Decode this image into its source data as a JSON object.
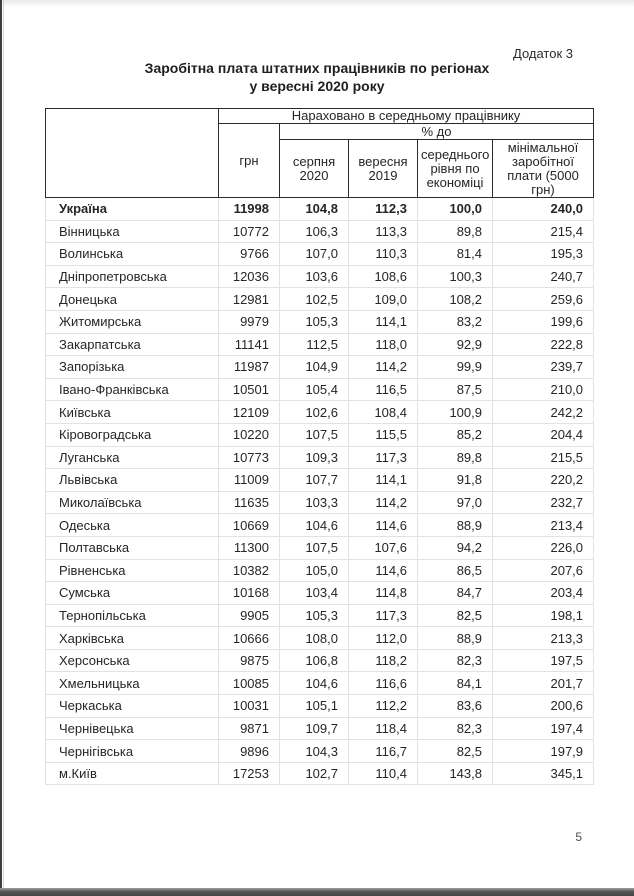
{
  "page": {
    "appendix_label": "Додаток 3",
    "title_line1": "Заробітна плата штатних працівників по регіонах",
    "title_line2": "у вересні 2020 року",
    "page_number": "5"
  },
  "table": {
    "header": {
      "group_label": "Нараховано в середньому працівнику",
      "uah_label": "грн",
      "percent_label": "% до",
      "sub_columns": [
        "серпня 2020",
        "вересня 2019",
        "середнього рівня по економіці",
        "мінімальної заробітної плати (5000 грн)"
      ]
    },
    "rows": [
      {
        "region": "Україна",
        "uah": "11998",
        "to_aug_2020": "104,8",
        "to_sep_2019": "112,3",
        "to_avg_economy": "100,0",
        "to_min_wage": "240,0",
        "bold": true
      },
      {
        "region": "Вінницька",
        "uah": "10772",
        "to_aug_2020": "106,3",
        "to_sep_2019": "113,3",
        "to_avg_economy": "89,8",
        "to_min_wage": "215,4",
        "bold": false
      },
      {
        "region": "Волинська",
        "uah": "9766",
        "to_aug_2020": "107,0",
        "to_sep_2019": "110,3",
        "to_avg_economy": "81,4",
        "to_min_wage": "195,3",
        "bold": false
      },
      {
        "region": "Дніпропетровська",
        "uah": "12036",
        "to_aug_2020": "103,6",
        "to_sep_2019": "108,6",
        "to_avg_economy": "100,3",
        "to_min_wage": "240,7",
        "bold": false
      },
      {
        "region": "Донецька",
        "uah": "12981",
        "to_aug_2020": "102,5",
        "to_sep_2019": "109,0",
        "to_avg_economy": "108,2",
        "to_min_wage": "259,6",
        "bold": false
      },
      {
        "region": "Житомирська",
        "uah": "9979",
        "to_aug_2020": "105,3",
        "to_sep_2019": "114,1",
        "to_avg_economy": "83,2",
        "to_min_wage": "199,6",
        "bold": false
      },
      {
        "region": "Закарпатська",
        "uah": "11141",
        "to_aug_2020": "112,5",
        "to_sep_2019": "118,0",
        "to_avg_economy": "92,9",
        "to_min_wage": "222,8",
        "bold": false
      },
      {
        "region": "Запорізька",
        "uah": "11987",
        "to_aug_2020": "104,9",
        "to_sep_2019": "114,2",
        "to_avg_economy": "99,9",
        "to_min_wage": "239,7",
        "bold": false
      },
      {
        "region": "Івано-Франківська",
        "uah": "10501",
        "to_aug_2020": "105,4",
        "to_sep_2019": "116,5",
        "to_avg_economy": "87,5",
        "to_min_wage": "210,0",
        "bold": false
      },
      {
        "region": "Київська",
        "uah": "12109",
        "to_aug_2020": "102,6",
        "to_sep_2019": "108,4",
        "to_avg_economy": "100,9",
        "to_min_wage": "242,2",
        "bold": false
      },
      {
        "region": "Кіровоградська",
        "uah": "10220",
        "to_aug_2020": "107,5",
        "to_sep_2019": "115,5",
        "to_avg_economy": "85,2",
        "to_min_wage": "204,4",
        "bold": false
      },
      {
        "region": "Луганська",
        "uah": "10773",
        "to_aug_2020": "109,3",
        "to_sep_2019": "117,3",
        "to_avg_economy": "89,8",
        "to_min_wage": "215,5",
        "bold": false
      },
      {
        "region": "Львівська",
        "uah": "11009",
        "to_aug_2020": "107,7",
        "to_sep_2019": "114,1",
        "to_avg_economy": "91,8",
        "to_min_wage": "220,2",
        "bold": false
      },
      {
        "region": "Миколаївська",
        "uah": "11635",
        "to_aug_2020": "103,3",
        "to_sep_2019": "114,2",
        "to_avg_economy": "97,0",
        "to_min_wage": "232,7",
        "bold": false
      },
      {
        "region": "Одеська",
        "uah": "10669",
        "to_aug_2020": "104,6",
        "to_sep_2019": "114,6",
        "to_avg_economy": "88,9",
        "to_min_wage": "213,4",
        "bold": false
      },
      {
        "region": "Полтавська",
        "uah": "11300",
        "to_aug_2020": "107,5",
        "to_sep_2019": "107,6",
        "to_avg_economy": "94,2",
        "to_min_wage": "226,0",
        "bold": false
      },
      {
        "region": "Рівненська",
        "uah": "10382",
        "to_aug_2020": "105,0",
        "to_sep_2019": "114,6",
        "to_avg_economy": "86,5",
        "to_min_wage": "207,6",
        "bold": false
      },
      {
        "region": "Сумська",
        "uah": "10168",
        "to_aug_2020": "103,4",
        "to_sep_2019": "114,8",
        "to_avg_economy": "84,7",
        "to_min_wage": "203,4",
        "bold": false
      },
      {
        "region": "Тернопільська",
        "uah": "9905",
        "to_aug_2020": "105,3",
        "to_sep_2019": "117,3",
        "to_avg_economy": "82,5",
        "to_min_wage": "198,1",
        "bold": false
      },
      {
        "region": "Харківська",
        "uah": "10666",
        "to_aug_2020": "108,0",
        "to_sep_2019": "112,0",
        "to_avg_economy": "88,9",
        "to_min_wage": "213,3",
        "bold": false
      },
      {
        "region": "Херсонська",
        "uah": "9875",
        "to_aug_2020": "106,8",
        "to_sep_2019": "118,2",
        "to_avg_economy": "82,3",
        "to_min_wage": "197,5",
        "bold": false
      },
      {
        "region": "Хмельницька",
        "uah": "10085",
        "to_aug_2020": "104,6",
        "to_sep_2019": "116,6",
        "to_avg_economy": "84,1",
        "to_min_wage": "201,7",
        "bold": false
      },
      {
        "region": "Черкаська",
        "uah": "10031",
        "to_aug_2020": "105,1",
        "to_sep_2019": "112,2",
        "to_avg_economy": "83,6",
        "to_min_wage": "200,6",
        "bold": false
      },
      {
        "region": "Чернівецька",
        "uah": "9871",
        "to_aug_2020": "109,7",
        "to_sep_2019": "118,4",
        "to_avg_economy": "82,3",
        "to_min_wage": "197,4",
        "bold": false
      },
      {
        "region": "Чернігівська",
        "uah": "9896",
        "to_aug_2020": "104,3",
        "to_sep_2019": "116,7",
        "to_avg_economy": "82,5",
        "to_min_wage": "197,9",
        "bold": false
      },
      {
        "region": "м.Київ",
        "uah": "17253",
        "to_aug_2020": "102,7",
        "to_sep_2019": "110,4",
        "to_avg_economy": "143,8",
        "to_min_wage": "345,1",
        "bold": false
      }
    ]
  }
}
